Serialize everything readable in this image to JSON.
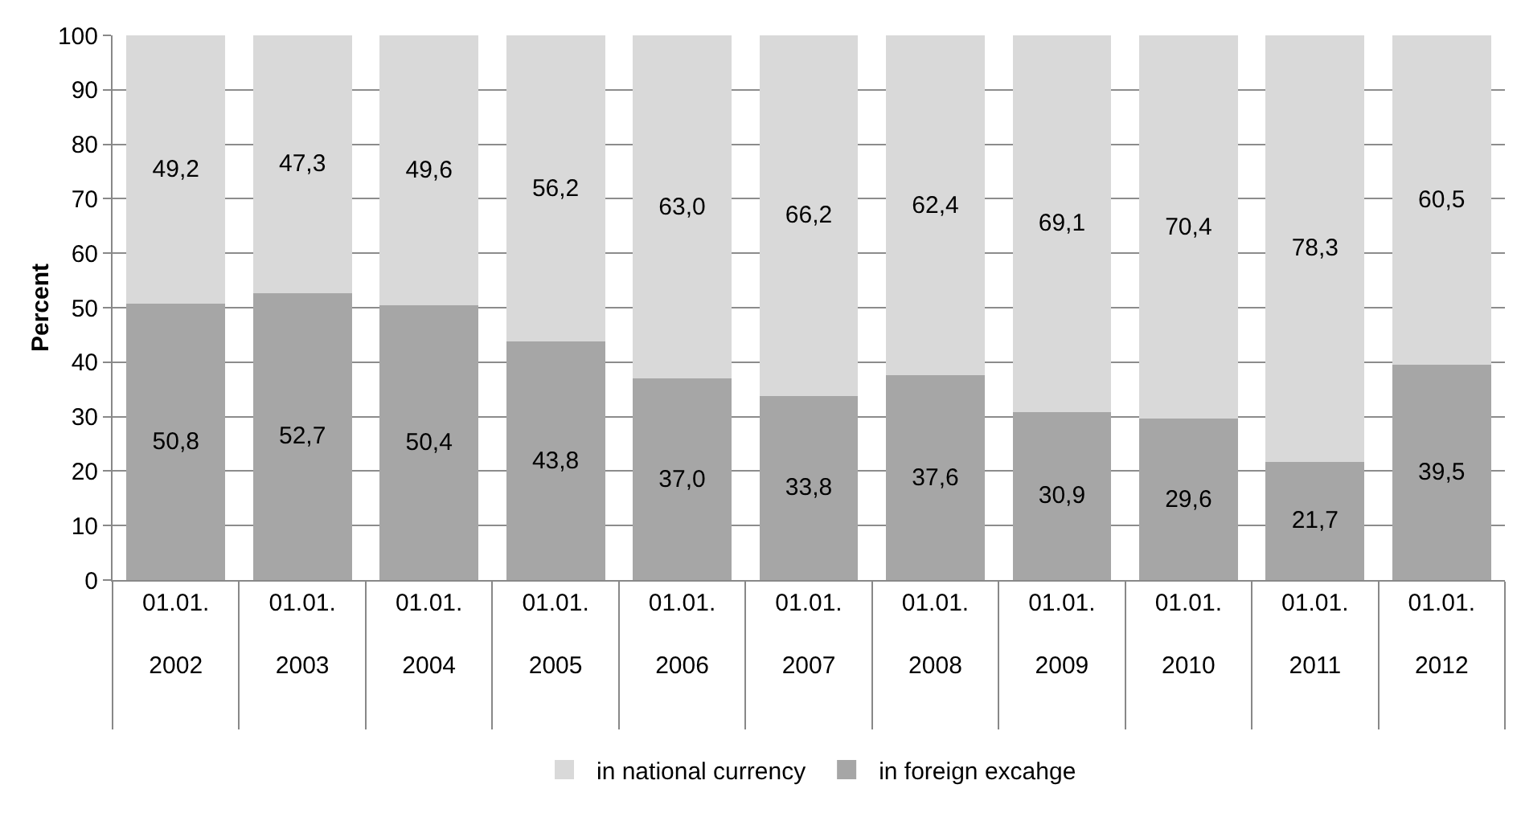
{
  "chart_data": {
    "type": "bar",
    "stacked": true,
    "ylabel": "Percent",
    "categories": [
      "01.01.\n2002",
      "01.01.\n2003",
      "01.01.\n2004",
      "01.01.\n2005",
      "01.01.\n2006",
      "01.01.\n2007",
      "01.01.\n2008",
      "01.01.\n2009",
      "01.01.\n2010",
      "01.01.\n2011",
      "01.01.\n2012"
    ],
    "series": [
      {
        "name": "in foreign excahge",
        "color": "#a6a6a6",
        "values": [
          50.8,
          52.7,
          50.4,
          43.8,
          37.0,
          33.8,
          37.6,
          30.9,
          29.6,
          21.7,
          39.5
        ],
        "value_labels": [
          "50,8",
          "52,7",
          "50,4",
          "43,8",
          "37,0",
          "33,8",
          "37,6",
          "30,9",
          "29,6",
          "21,7",
          "39,5"
        ]
      },
      {
        "name": "in national currency",
        "color": "#d9d9d9",
        "values": [
          49.2,
          47.3,
          49.6,
          56.2,
          63.0,
          66.2,
          62.4,
          69.1,
          70.4,
          78.3,
          60.5
        ],
        "value_labels": [
          "49,2",
          "47,3",
          "49,6",
          "56,2",
          "63,0",
          "66,2",
          "62,4",
          "69,1",
          "70,4",
          "78,3",
          "60,5"
        ]
      }
    ],
    "ylim": [
      0,
      100
    ],
    "yticks": [
      0,
      10,
      20,
      30,
      40,
      50,
      60,
      70,
      80,
      90,
      100
    ],
    "grid": "y",
    "legend": "bottom"
  }
}
